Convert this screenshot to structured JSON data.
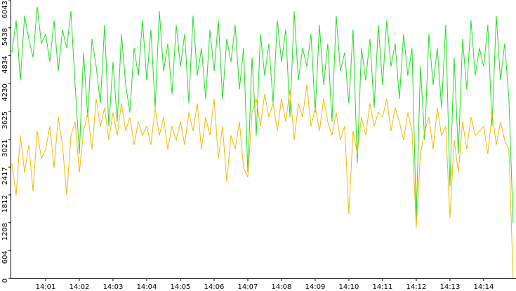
{
  "chart_data": {
    "type": "line",
    "x": [
      0,
      0.125,
      0.25,
      0.375,
      0.5,
      0.625,
      0.75,
      0.875,
      1,
      1.125,
      1.25,
      1.375,
      1.5,
      1.625,
      1.75,
      1.875,
      2,
      2.125,
      2.25,
      2.375,
      2.5,
      2.625,
      2.75,
      2.875,
      3,
      3.125,
      3.25,
      3.375,
      3.5,
      3.625,
      3.75,
      3.875,
      4,
      4.125,
      4.25,
      4.375,
      4.5,
      4.625,
      4.75,
      4.875,
      5,
      5.125,
      5.25,
      5.375,
      5.5,
      5.625,
      5.75,
      5.875,
      6,
      6.125,
      6.25,
      6.375,
      6.5,
      6.625,
      6.75,
      6.875,
      7,
      7.125,
      7.25,
      7.375,
      7.5,
      7.625,
      7.75,
      7.875,
      8,
      8.125,
      8.25,
      8.375,
      8.5,
      8.625,
      8.75,
      8.875,
      9,
      9.125,
      9.25,
      9.375,
      9.5,
      9.625,
      9.75,
      9.875,
      10,
      10.125,
      10.25,
      10.375,
      10.5,
      10.625,
      10.75,
      10.875,
      11,
      11.125,
      11.25,
      11.375,
      11.5,
      11.625,
      11.75,
      11.875,
      12,
      12.125,
      12.25,
      12.375,
      12.5,
      12.625,
      12.75,
      12.875,
      13,
      13.125,
      13.25,
      13.375,
      13.5,
      13.625,
      13.75,
      13.875,
      14,
      14.125,
      14.25,
      14.375,
      14.5,
      14.625,
      14.75,
      14.875
    ],
    "series": [
      {
        "color": "#22dd22",
        "values": [
          4900,
          5600,
          4300,
          5700,
          5200,
          4800,
          5900,
          5100,
          5300,
          4700,
          5600,
          4500,
          5400,
          5000,
          5800,
          4200,
          2700,
          4900,
          3500,
          5200,
          4600,
          3800,
          5500,
          3300,
          4700,
          3400,
          5300,
          4200,
          3600,
          5000,
          4400,
          5600,
          4300,
          5400,
          3700,
          5800,
          4500,
          5100,
          4000,
          5500,
          4600,
          5300,
          3800,
          5700,
          4400,
          5000,
          3900,
          5400,
          4500,
          5600,
          3900,
          5200,
          4700,
          5500,
          4100,
          5000,
          2300,
          4800,
          3100,
          5300,
          4400,
          5100,
          3800,
          5600,
          4700,
          5400,
          3500,
          5800,
          4300,
          5000,
          4600,
          5300,
          3600,
          5500,
          4200,
          5100,
          3400,
          5700,
          4500,
          4900,
          3800,
          5400,
          2500,
          5000,
          4300,
          5200,
          3700,
          5500,
          4200,
          5600,
          4600,
          5100,
          3900,
          5300,
          4400,
          5000,
          1300,
          4600,
          3000,
          5300,
          4200,
          5000,
          3700,
          5500,
          2000,
          4800,
          2700,
          5200,
          4100,
          5600,
          4400,
          5000,
          4600,
          5500,
          3300,
          5700,
          4300,
          5100,
          3900,
          1200
        ]
      },
      {
        "color": "#f5b800",
        "values": [
          2500,
          1800,
          3100,
          2300,
          2900,
          1900,
          3200,
          2600,
          2800,
          3300,
          2400,
          3500,
          2900,
          1800,
          3100,
          3400,
          2300,
          3200,
          3600,
          2800,
          3900,
          3300,
          3700,
          3000,
          3600,
          3100,
          3800,
          3200,
          3500,
          2900,
          3400,
          3100,
          3300,
          2900,
          3700,
          3100,
          3500,
          2800,
          3300,
          3000,
          3400,
          2900,
          3600,
          3200,
          3800,
          2800,
          3500,
          3100,
          3900,
          2600,
          3300,
          2100,
          3100,
          2800,
          3400,
          2400,
          2200,
          3600,
          3900,
          3300,
          4000,
          3500,
          3800,
          3200,
          3900,
          3400,
          4100,
          3000,
          3800,
          3500,
          4200,
          3300,
          3700,
          3200,
          3900,
          3400,
          3100,
          3600,
          3000,
          3300,
          1400,
          3200,
          2700,
          3500,
          3100,
          3800,
          3300,
          3600,
          3500,
          3900,
          3200,
          3700,
          3400,
          3000,
          3600,
          3200,
          1100,
          2700,
          3200,
          3500,
          2800,
          3700,
          3100,
          3300,
          1300,
          3000,
          2300,
          3400,
          2800,
          3500,
          3100,
          3200,
          3300,
          2700,
          3600,
          2900,
          3400,
          3000,
          2800,
          0
        ]
      }
    ],
    "xlim": [
      0,
      14.96
    ],
    "xticks": [
      {
        "value": 1,
        "label": "14:01"
      },
      {
        "value": 2,
        "label": "14:02"
      },
      {
        "value": 3,
        "label": "14:03"
      },
      {
        "value": 4,
        "label": "14:04"
      },
      {
        "value": 5,
        "label": "14:05"
      },
      {
        "value": 6,
        "label": "14:06"
      },
      {
        "value": 7,
        "label": "14:07"
      },
      {
        "value": 8,
        "label": "14:08"
      },
      {
        "value": 9,
        "label": "14:09"
      },
      {
        "value": 10,
        "label": "14:10"
      },
      {
        "value": 11,
        "label": "14:11"
      },
      {
        "value": 12,
        "label": "14:12"
      },
      {
        "value": 13,
        "label": "14:13"
      },
      {
        "value": 14,
        "label": "14:14"
      }
    ],
    "ylim": [
      0,
      6043
    ],
    "yticks": [
      0,
      604,
      1208,
      1812,
      2417,
      3021,
      3625,
      4230,
      4834,
      5438,
      6043
    ]
  }
}
